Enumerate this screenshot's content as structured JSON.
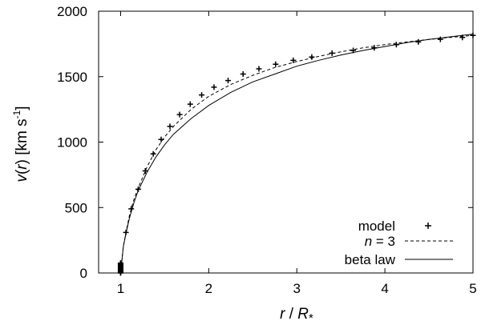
{
  "chart_data": {
    "type": "line",
    "xlabel_parts": [
      "r",
      " / ",
      "R",
      "*"
    ],
    "ylabel_parts": [
      "v",
      "(",
      "r",
      ") [km s",
      "-1",
      "]"
    ],
    "xlim": [
      0.75,
      5
    ],
    "ylim": [
      0,
      2000
    ],
    "xticks": [
      1,
      2,
      3,
      4,
      5
    ],
    "yticks": [
      0,
      500,
      1000,
      1500,
      2000
    ],
    "grid": false,
    "legend_position": "bottom-right",
    "series": [
      {
        "name": "model",
        "style": "plus-markers",
        "color": "#000000",
        "x": [
          1.0,
          1.0,
          1.0,
          1.0,
          1.0,
          1.0,
          1.0,
          1.0,
          1.0,
          1.0,
          1.0,
          1.0,
          1.0,
          1.0,
          1.0,
          1.0,
          1.0,
          1.0,
          1.0,
          1.0,
          1.06,
          1.12,
          1.2,
          1.28,
          1.37,
          1.46,
          1.56,
          1.67,
          1.79,
          1.92,
          2.06,
          2.22,
          2.39,
          2.57,
          2.76,
          2.96,
          3.17,
          3.4,
          3.64,
          3.88,
          4.13,
          4.38,
          4.63,
          4.88,
          5.0
        ],
        "y": [
          0,
          4,
          8,
          12,
          16,
          20,
          24,
          28,
          32,
          36,
          40,
          44,
          48,
          52,
          56,
          60,
          64,
          68,
          72,
          76,
          310,
          490,
          640,
          780,
          910,
          1020,
          1120,
          1210,
          1290,
          1360,
          1420,
          1470,
          1520,
          1560,
          1595,
          1625,
          1650,
          1680,
          1700,
          1720,
          1745,
          1765,
          1785,
          1800,
          1815
        ]
      },
      {
        "name": "n = 3",
        "style": "dashed",
        "color": "#000000",
        "x": [
          1.0,
          1.03,
          1.06,
          1.1,
          1.15,
          1.2,
          1.3,
          1.4,
          1.5,
          1.6,
          1.8,
          2.0,
          2.25,
          2.5,
          2.75,
          3.0,
          3.25,
          3.5,
          3.75,
          4.0,
          4.25,
          4.5,
          4.75,
          5.0
        ],
        "y": [
          0,
          200,
          310,
          440,
          560,
          650,
          810,
          940,
          1040,
          1120,
          1250,
          1350,
          1440,
          1510,
          1570,
          1615,
          1655,
          1690,
          1720,
          1745,
          1765,
          1785,
          1800,
          1815
        ]
      },
      {
        "name": "beta law",
        "style": "solid",
        "color": "#000000",
        "x": [
          1.0,
          1.03,
          1.06,
          1.1,
          1.15,
          1.2,
          1.3,
          1.4,
          1.5,
          1.6,
          1.8,
          2.0,
          2.25,
          2.5,
          2.75,
          3.0,
          3.25,
          3.5,
          3.75,
          4.0,
          4.25,
          4.5,
          4.75,
          5.0
        ],
        "y": [
          0,
          200,
          300,
          420,
          535,
          630,
          770,
          885,
          980,
          1060,
          1180,
          1280,
          1380,
          1460,
          1520,
          1580,
          1625,
          1665,
          1700,
          1730,
          1760,
          1785,
          1805,
          1825
        ]
      }
    ]
  }
}
